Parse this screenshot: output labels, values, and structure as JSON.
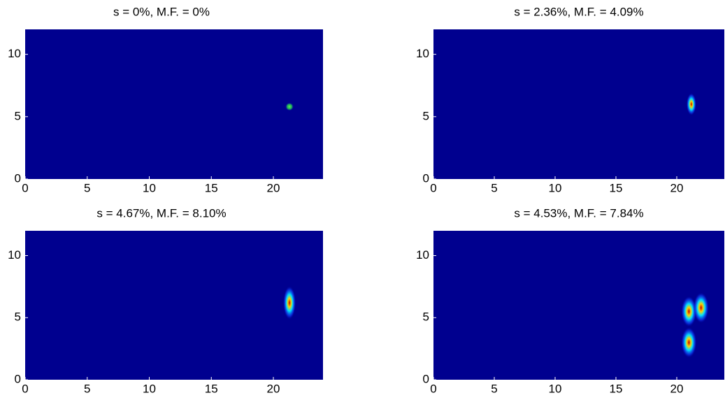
{
  "chart_data": [
    {
      "type": "heatmap",
      "title": "s = 0%, M.F. = 0%",
      "color": "#00008f",
      "xlim": [
        0,
        24
      ],
      "ylim": [
        0,
        12
      ],
      "xticks": [
        0,
        5,
        10,
        15,
        20
      ],
      "yticks": [
        0,
        5,
        10
      ],
      "x": [
        21.3
      ],
      "y": [
        5.8
      ]
    },
    {
      "type": "heatmap",
      "title": "s = 2.36%, M.F. = 4.09%",
      "color": "#00008f",
      "xlim": [
        0,
        24
      ],
      "ylim": [
        0,
        12
      ],
      "xticks": [
        0,
        5,
        10,
        15,
        20
      ],
      "yticks": [
        0,
        5,
        10
      ],
      "x": [
        21.2
      ],
      "y": [
        6.0
      ]
    },
    {
      "type": "heatmap",
      "title": "s = 4.67%, M.F. = 8.10%",
      "color": "#00008f",
      "xlim": [
        0,
        24
      ],
      "ylim": [
        0,
        12
      ],
      "xticks": [
        0,
        5,
        10,
        15,
        20
      ],
      "yticks": [
        0,
        5,
        10
      ],
      "x": [
        21.3
      ],
      "y": [
        6.2
      ]
    },
    {
      "type": "heatmap",
      "title": "s = 4.53%, M.F. = 7.84%",
      "color": "#00008f",
      "xlim": [
        0,
        24
      ],
      "ylim": [
        0,
        12
      ],
      "xticks": [
        0,
        5,
        10,
        15,
        20
      ],
      "yticks": [
        0,
        5,
        10
      ],
      "x": [
        21.0,
        21.0,
        22.0
      ],
      "y": [
        5.5,
        3.0,
        5.8
      ]
    }
  ]
}
